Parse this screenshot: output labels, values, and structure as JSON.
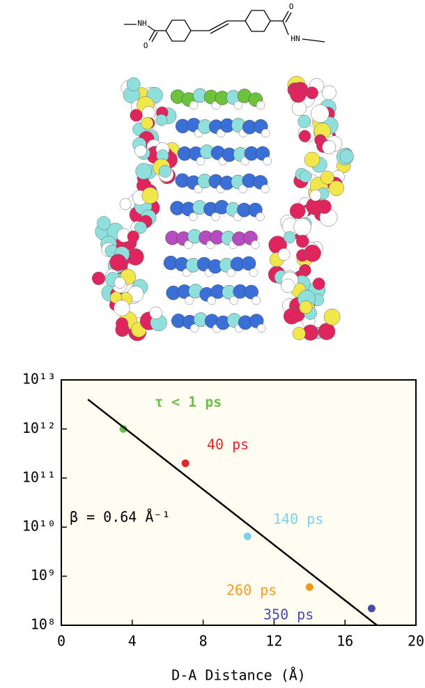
{
  "molecule": {
    "atoms": [
      "NH",
      "O",
      "HN",
      "O"
    ]
  },
  "chart_data": {
    "type": "scatter",
    "xlabel": "D-A Distance (Å)",
    "xlim": [
      0,
      20
    ],
    "xticks": [
      0,
      4,
      8,
      12,
      16,
      20
    ],
    "ylim": [
      100000000,
      10000000000000
    ],
    "yscale": "log",
    "yticks": [
      {
        "value": 100000000,
        "label": "10⁸"
      },
      {
        "value": 1000000000,
        "label": "10⁹"
      },
      {
        "value": 10000000000,
        "label": "10¹⁰"
      },
      {
        "value": 100000000000,
        "label": "10¹¹"
      },
      {
        "value": 1000000000000,
        "label": "10¹²"
      },
      {
        "value": 10000000000000,
        "label": "10¹³"
      }
    ],
    "background": "#fffdf2",
    "series": [
      {
        "type": "scatter",
        "x": [
          3.5,
          7,
          10.5,
          14,
          17.5
        ],
        "values": [
          1000000000000,
          200000000000,
          6500000000,
          600000000,
          220000000
        ],
        "colors": [
          "#6cbf4a",
          "#e0282b",
          "#7fcfe8",
          "#f39a1e",
          "#4b4aa8"
        ]
      },
      {
        "type": "line",
        "x": [
          1.5,
          17.8
        ],
        "values": [
          4000000000000,
          100000000
        ],
        "color": "#000000"
      }
    ],
    "annotations": [
      {
        "text": "τ < 1 ps",
        "color": "#6cbf4a"
      },
      {
        "text": "40 ps",
        "color": "#e0282b"
      },
      {
        "text": "140 ps",
        "color": "#7fcfe8"
      },
      {
        "text": "260 ps",
        "color": "#f39a1e"
      },
      {
        "text": "350 ps",
        "color": "#4b4aa8"
      },
      {
        "text": "β = 0.64 Å⁻¹",
        "color": "#000000"
      }
    ]
  }
}
